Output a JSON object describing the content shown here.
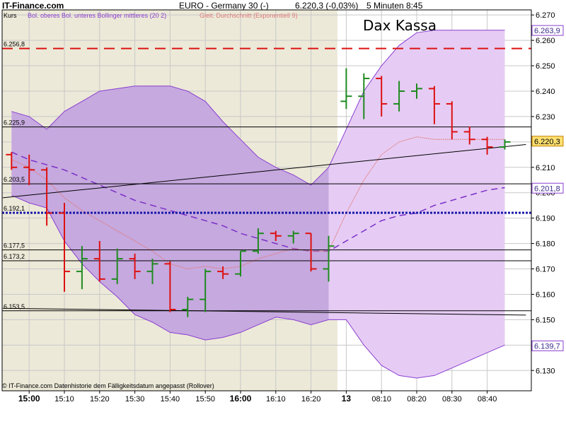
{
  "header": {
    "site": "IT-Finance.com",
    "instrument": "EURO - Germany 30 (-)",
    "quote": "6.220,3 (-0,03%)",
    "interval": "5 Minuten  8:45"
  },
  "legend": {
    "axis_label": "Kurs",
    "bollinger": "Bol. oberes Bol. unteres Bollinger mittleres (20 2)",
    "ema": "Gleit. Durchschnitt (Exponentiell 9)"
  },
  "footer": "© IT-Finance.com Datenhistorie dem Fälligkeitsdatum angepasst (Rollover)",
  "chart_data": {
    "type": "ohlc",
    "title": "Dax Kassa",
    "ylim": [
      6.122,
      6.272
    ],
    "y_ticks": [
      {
        "value": 6.13,
        "label": "6.130"
      },
      {
        "value": 6.14,
        "label": "6.140"
      },
      {
        "value": 6.15,
        "label": "6.150"
      },
      {
        "value": 6.16,
        "label": "6.160"
      },
      {
        "value": 6.17,
        "label": "6.170"
      },
      {
        "value": 6.18,
        "label": "6.180"
      },
      {
        "value": 6.19,
        "label": "6.190"
      },
      {
        "value": 6.2,
        "label": "6.200"
      },
      {
        "value": 6.21,
        "label": "6.210"
      },
      {
        "value": 6.22,
        "label": "6.220"
      },
      {
        "value": 6.23,
        "label": "6.230"
      },
      {
        "value": 6.24,
        "label": "6.240"
      },
      {
        "value": 6.25,
        "label": "6.250"
      },
      {
        "value": 6.26,
        "label": "6.260"
      },
      {
        "value": 6.27,
        "label": "6.270"
      }
    ],
    "x_labels": [
      {
        "index": 1,
        "label": "15:00",
        "bold": true
      },
      {
        "index": 3,
        "label": "15:10",
        "bold": false
      },
      {
        "index": 5,
        "label": "15:20",
        "bold": false
      },
      {
        "index": 7,
        "label": "15:30",
        "bold": false
      },
      {
        "index": 9,
        "label": "15:40",
        "bold": false
      },
      {
        "index": 11,
        "label": "15:50",
        "bold": false
      },
      {
        "index": 13,
        "label": "16:00",
        "bold": true
      },
      {
        "index": 15,
        "label": "16:10",
        "bold": false
      },
      {
        "index": 17,
        "label": "16:20",
        "bold": false
      },
      {
        "index": 19,
        "label": "13",
        "bold": true
      },
      {
        "index": 21,
        "label": "08:10",
        "bold": false
      },
      {
        "index": 23,
        "label": "08:20",
        "bold": false
      },
      {
        "index": 25,
        "label": "08:30",
        "bold": false
      },
      {
        "index": 27,
        "label": "08:40",
        "bold": false
      }
    ],
    "bars": [
      {
        "o": 6.215,
        "h": 6.216,
        "l": 6.209,
        "c": 6.21
      },
      {
        "o": 6.21,
        "h": 6.215,
        "l": 6.203,
        "c": 6.209
      },
      {
        "o": 6.209,
        "h": 6.21,
        "l": 6.187,
        "c": 6.192
      },
      {
        "o": 6.192,
        "h": 6.196,
        "l": 6.161,
        "c": 6.169
      },
      {
        "o": 6.169,
        "h": 6.179,
        "l": 6.162,
        "c": 6.174
      },
      {
        "o": 6.174,
        "h": 6.181,
        "l": 6.165,
        "c": 6.166
      },
      {
        "o": 6.166,
        "h": 6.178,
        "l": 6.164,
        "c": 6.174
      },
      {
        "o": 6.174,
        "h": 6.176,
        "l": 6.166,
        "c": 6.169
      },
      {
        "o": 6.169,
        "h": 6.174,
        "l": 6.164,
        "c": 6.172
      },
      {
        "o": 6.172,
        "h": 6.173,
        "l": 6.153,
        "c": 6.154
      },
      {
        "o": 6.154,
        "h": 6.159,
        "l": 6.151,
        "c": 6.158
      },
      {
        "o": 6.158,
        "h": 6.17,
        "l": 6.153,
        "c": 6.169
      },
      {
        "o": 6.169,
        "h": 6.171,
        "l": 6.166,
        "c": 6.168
      },
      {
        "o": 6.168,
        "h": 6.177,
        "l": 6.167,
        "c": 6.177
      },
      {
        "o": 6.177,
        "h": 6.186,
        "l": 6.176,
        "c": 6.184
      },
      {
        "o": 6.184,
        "h": 6.185,
        "l": 6.181,
        "c": 6.183
      },
      {
        "o": 6.183,
        "h": 6.185,
        "l": 6.18,
        "c": 6.184
      },
      {
        "o": 6.184,
        "h": 6.184,
        "l": 6.169,
        "c": 6.17
      },
      {
        "o": 6.17,
        "h": 6.183,
        "l": 6.165,
        "c": 6.179
      },
      {
        "o": 6.236,
        "h": 6.249,
        "l": 6.233,
        "c": 6.238
      },
      {
        "o": 6.238,
        "h": 6.247,
        "l": 6.229,
        "c": 6.245
      },
      {
        "o": 6.245,
        "h": 6.246,
        "l": 6.23,
        "c": 6.235
      },
      {
        "o": 6.235,
        "h": 6.244,
        "l": 6.232,
        "c": 6.24
      },
      {
        "o": 6.24,
        "h": 6.243,
        "l": 6.237,
        "c": 6.241
      },
      {
        "o": 6.241,
        "h": 6.242,
        "l": 6.227,
        "c": 6.235
      },
      {
        "o": 6.235,
        "h": 6.236,
        "l": 6.221,
        "c": 6.224
      },
      {
        "o": 6.224,
        "h": 6.226,
        "l": 6.219,
        "c": 6.221
      },
      {
        "o": 6.221,
        "h": 6.222,
        "l": 6.215,
        "c": 6.218
      },
      {
        "o": 6.218,
        "h": 6.221,
        "l": 6.217,
        "c": 6.22
      }
    ],
    "bollinger_upper": [
      6.232,
      6.23,
      6.225,
      6.232,
      6.236,
      6.24,
      6.241,
      6.242,
      6.242,
      6.242,
      6.24,
      6.236,
      6.228,
      6.221,
      6.214,
      6.21,
      6.207,
      6.203,
      6.21,
      6.225,
      6.24,
      6.25,
      6.258,
      6.263,
      6.264,
      6.264,
      6.264,
      6.264,
      6.264
    ],
    "bollinger_middle": [
      6.216,
      6.213,
      6.211,
      6.209,
      6.206,
      6.203,
      6.2,
      6.197,
      6.195,
      6.193,
      6.191,
      6.189,
      6.187,
      6.184,
      6.182,
      6.18,
      6.178,
      6.177,
      6.177,
      6.181,
      6.185,
      6.189,
      6.191,
      6.192,
      6.195,
      6.197,
      6.199,
      6.201,
      6.202
    ],
    "bollinger_lower": [
      6.199,
      6.196,
      6.194,
      6.181,
      6.172,
      6.165,
      6.159,
      6.152,
      6.149,
      6.145,
      6.144,
      6.142,
      6.143,
      6.145,
      6.148,
      6.151,
      6.15,
      6.148,
      6.15,
      6.15,
      6.14,
      6.132,
      6.128,
      6.127,
      6.128,
      6.131,
      6.134,
      6.137,
      6.14
    ],
    "ema9": [
      6.213,
      6.21,
      6.205,
      6.198,
      6.193,
      6.189,
      6.185,
      6.181,
      6.177,
      6.172,
      6.17,
      6.171,
      6.17,
      6.171,
      6.174,
      6.176,
      6.178,
      6.177,
      6.177,
      6.192,
      6.205,
      6.215,
      6.22,
      6.222,
      6.221,
      6.221,
      6.221,
      6.221,
      6.221
    ],
    "horizontal_lines": [
      {
        "value": 6.2568,
        "label": "6.256,8",
        "color": "#dd1111",
        "style": "dashed"
      },
      {
        "value": 6.2259,
        "label": "6.225,9",
        "color": "#000000",
        "style": "solid"
      },
      {
        "value": 6.2035,
        "label": "6.203,5",
        "color": "#000000",
        "style": "solid"
      },
      {
        "value": 6.1921,
        "label": "6.192,1",
        "color": "#1a1aaa",
        "style": "dotted"
      },
      {
        "value": 6.1775,
        "label": "6.177,5",
        "color": "#000000",
        "style": "solid"
      },
      {
        "value": 6.1732,
        "label": "6.173,2",
        "color": "#000000",
        "style": "solid"
      },
      {
        "value": 6.1535,
        "label": "6.153,5",
        "color": "#000000",
        "style": "solid"
      }
    ],
    "trend_lines": [
      {
        "from": {
          "index": -0.5,
          "value": 6.198
        },
        "to": {
          "index": 29.2,
          "value": 6.219
        }
      },
      {
        "from": {
          "index": -0.5,
          "value": 6.1545
        },
        "to": {
          "index": 29.2,
          "value": 6.1518
        }
      }
    ],
    "price_labels": [
      {
        "value": 6.2639,
        "label": "6.263,9",
        "kind": "band"
      },
      {
        "value": 6.2203,
        "label": "6.220,3",
        "kind": "last"
      },
      {
        "value": 6.2018,
        "label": "6.201,8",
        "kind": "band"
      },
      {
        "value": 6.1397,
        "label": "6.139,7",
        "kind": "band"
      }
    ],
    "colors": {
      "up": "#1f8a1f",
      "down": "#dd1111",
      "band_fill_history": "#c6a9df",
      "band_fill_today": "#e6ccf4",
      "band_edge": "#8a3fd1",
      "band_middle": "#7a2fc7",
      "ema": "#e07a7a",
      "grid": "#c8c8c8",
      "plot_bg_history": "#ece9d8",
      "plot_bg_today": "#ffffff"
    }
  }
}
